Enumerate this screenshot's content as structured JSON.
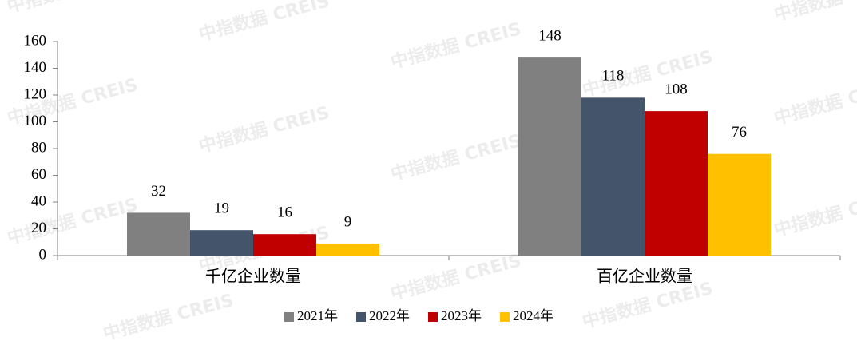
{
  "watermark": "中指数据 CREIS",
  "chart_data": {
    "type": "bar",
    "categories": [
      "千亿企业数量",
      "百亿企业数量"
    ],
    "series": [
      {
        "name": "2021年",
        "color": "#808080",
        "values": [
          32,
          148
        ]
      },
      {
        "name": "2022年",
        "color": "#44546a",
        "values": [
          19,
          118
        ]
      },
      {
        "name": "2023年",
        "color": "#c00000",
        "values": [
          16,
          108
        ]
      },
      {
        "name": "2024年",
        "color": "#ffc000",
        "values": [
          9,
          76
        ]
      }
    ],
    "ylim": [
      0,
      160
    ],
    "yticks": [
      0,
      20,
      40,
      60,
      80,
      100,
      120,
      140,
      160
    ],
    "legend": "bottom"
  }
}
